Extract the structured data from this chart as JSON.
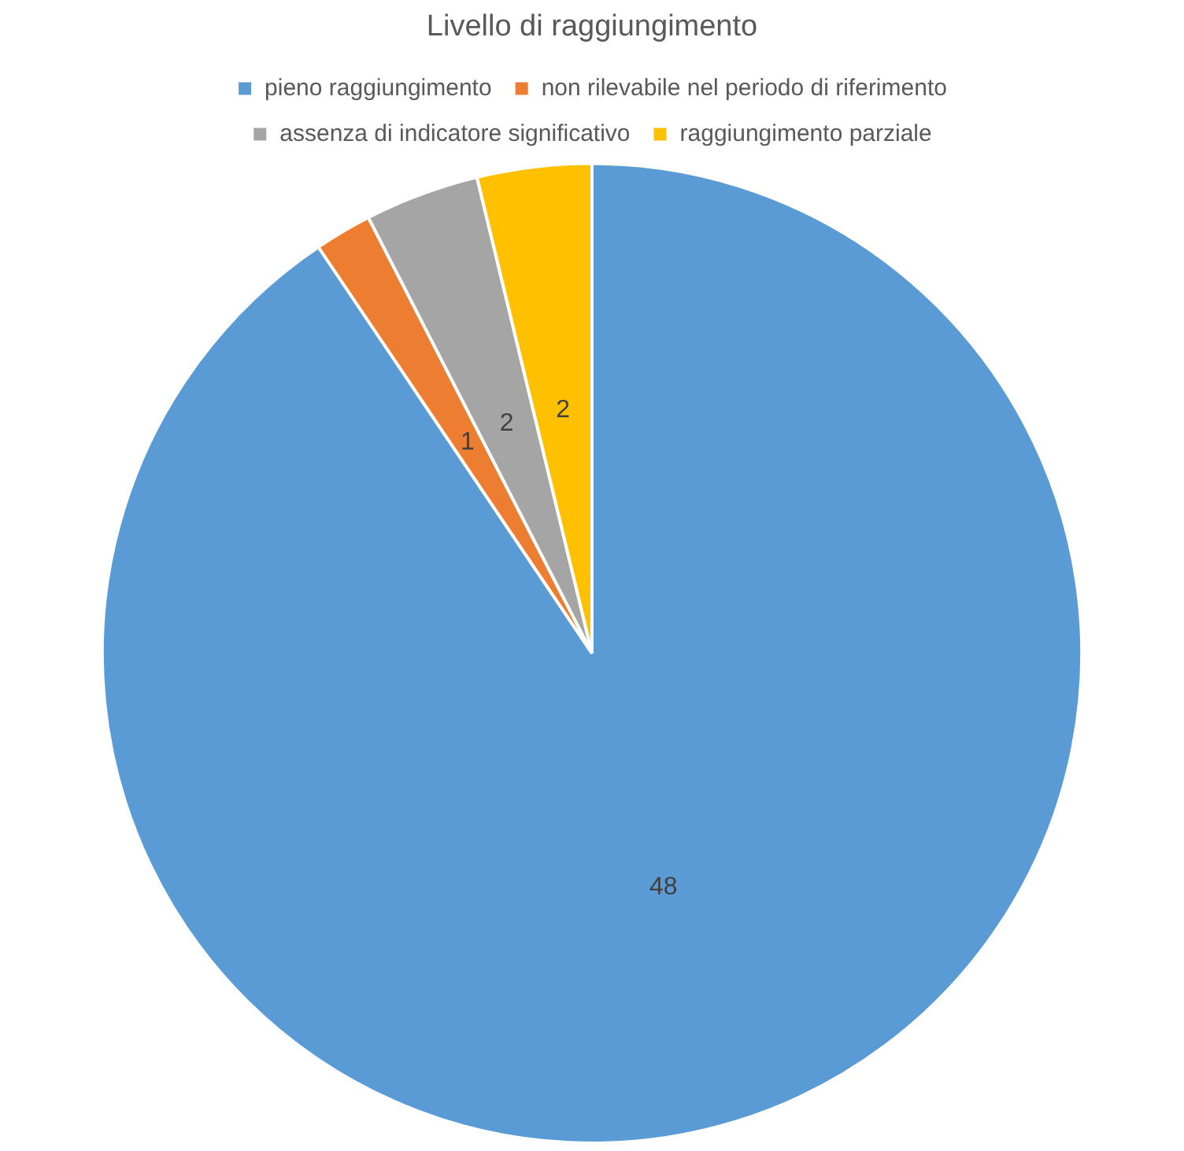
{
  "chart_data": {
    "type": "pie",
    "title": "Livello di raggiungimento",
    "categories": [
      "pieno raggiungimento",
      "non rilevabile nel periodo di riferimento",
      "assenza di indicatore significativo",
      "raggiungimento parziale"
    ],
    "values": [
      48,
      1,
      2,
      2
    ],
    "colors": [
      "#5b9bd5",
      "#ed7d31",
      "#a5a5a5",
      "#ffc000"
    ],
    "data_labels": true,
    "legend": "top"
  }
}
